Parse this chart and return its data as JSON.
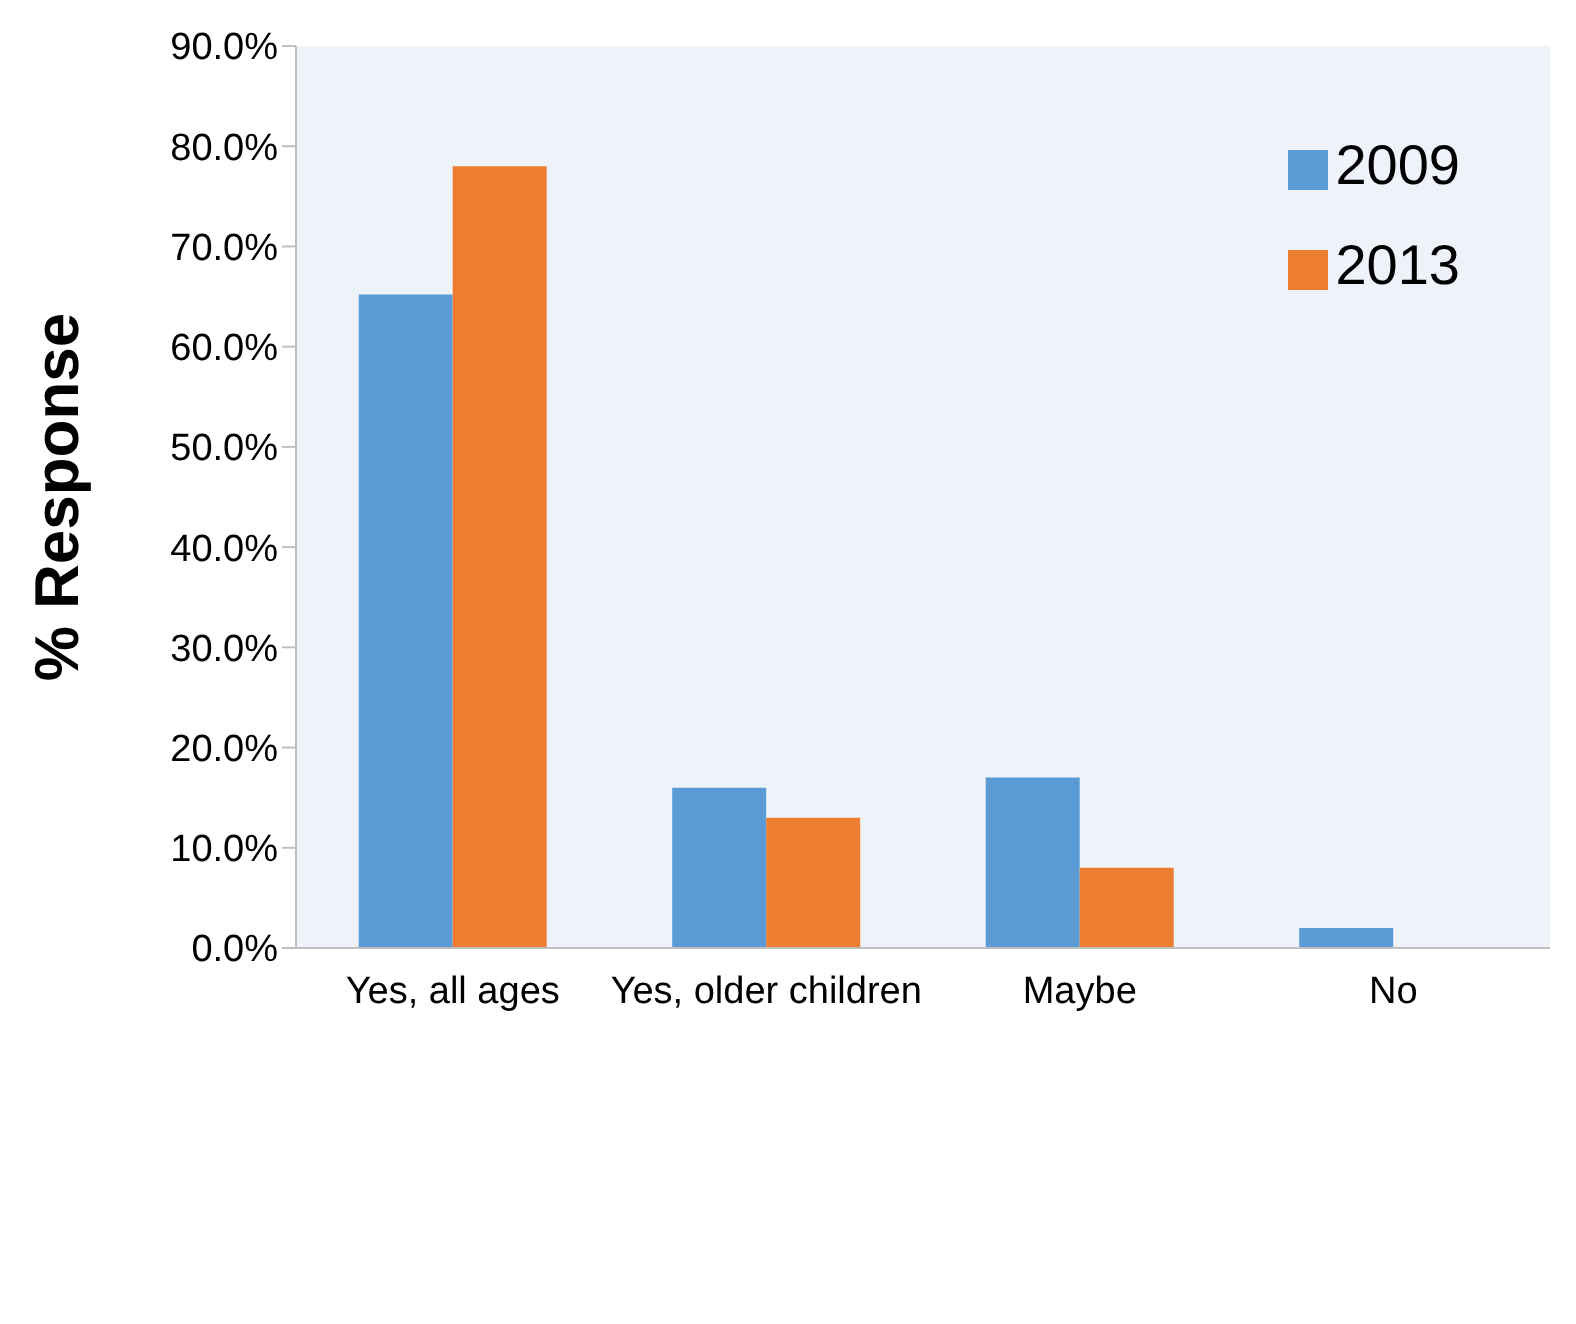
{
  "chart_data": {
    "type": "bar",
    "ylabel": "% Response",
    "categories": [
      "Yes, all ages",
      "Yes, older children",
      "Maybe",
      "No"
    ],
    "series": [
      {
        "name": "2009",
        "color": "#5b9bd5",
        "values": [
          65.2,
          16,
          17,
          2
        ]
      },
      {
        "name": "2013",
        "color": "#ed7d31",
        "values": [
          78,
          13,
          8,
          0
        ]
      }
    ],
    "ylim": [
      0,
      90
    ],
    "yticks": [
      {
        "value": 0,
        "label": "0.0%"
      },
      {
        "value": 10,
        "label": "10.0%"
      },
      {
        "value": 20,
        "label": "20.0%"
      },
      {
        "value": 30,
        "label": "30.0%"
      },
      {
        "value": 40,
        "label": "40.0%"
      },
      {
        "value": 50,
        "label": "50.0%"
      },
      {
        "value": 60,
        "label": "60.0%"
      },
      {
        "value": 70,
        "label": "70.0%"
      },
      {
        "value": 80,
        "label": "80.0%"
      },
      {
        "value": 90,
        "label": "90.0%"
      }
    ],
    "legend": "top right"
  }
}
